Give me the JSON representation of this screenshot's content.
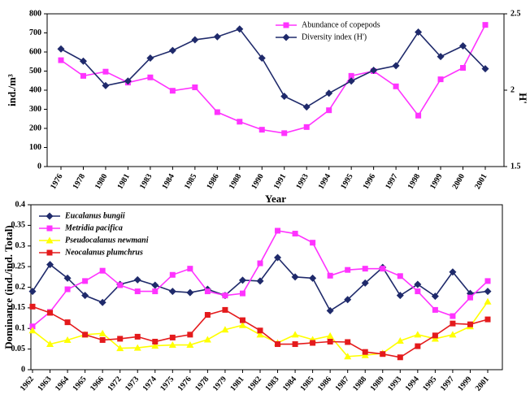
{
  "chart_data": [
    {
      "type": "line",
      "x_label": "Year",
      "y_label": "ind./m³",
      "y2_label": "H'",
      "categories": [
        "1976",
        "1978",
        "1980",
        "1981",
        "1983",
        "1984",
        "1985",
        "1986",
        "1988",
        "1990",
        "1991",
        "1993",
        "1994",
        "1995",
        "1996",
        "1997",
        "1998",
        "1999",
        "2000",
        "2001"
      ],
      "series": [
        {
          "name": "Abundance of copepods",
          "color": "#ff33ff",
          "marker": "square",
          "values": [
            557,
            475,
            497,
            440,
            467,
            397,
            415,
            285,
            235,
            193,
            175,
            207,
            295,
            475,
            500,
            420,
            267,
            457,
            517,
            742
          ]
        },
        {
          "name": "Diversity index (H')",
          "color": "#1f2a6b",
          "marker": "diamond",
          "axis": "y2",
          "values": [
            2.27,
            2.19,
            2.03,
            2.06,
            2.21,
            2.26,
            2.33,
            2.35,
            2.4,
            2.21,
            1.96,
            1.89,
            1.98,
            2.06,
            2.13,
            2.16,
            2.38,
            2.22,
            2.29,
            2.14
          ]
        }
      ],
      "ylim": [
        0,
        800
      ],
      "yticks": [
        0,
        100,
        200,
        300,
        400,
        500,
        600,
        700,
        800
      ],
      "y2lim": [
        1.5,
        2.5
      ],
      "y2ticks": [
        1.5,
        2,
        2.5
      ],
      "legend": "upper center"
    },
    {
      "type": "line",
      "y_label": "Dominance (ind./ind. Total)",
      "categories": [
        "1962",
        "1963",
        "1964",
        "1965",
        "1966",
        "1972",
        "1973",
        "1974",
        "1975",
        "1976",
        "1978",
        "1979",
        "1981",
        "1982",
        "1983",
        "1984",
        "1985",
        "1986",
        "1987",
        "1988",
        "1989",
        "1993",
        "1994",
        "1995",
        "1997",
        "1999",
        "2001"
      ],
      "series": [
        {
          "name": "Eucalanus bungii",
          "color": "#1f2a6b",
          "marker": "diamond",
          "values": [
            0.19,
            0.255,
            0.222,
            0.18,
            0.163,
            0.207,
            0.218,
            0.205,
            0.19,
            0.187,
            0.195,
            0.18,
            0.217,
            0.215,
            0.272,
            0.225,
            0.222,
            0.143,
            0.17,
            0.21,
            0.248,
            0.18,
            0.207,
            0.178,
            0.237,
            0.185,
            0.19
          ]
        },
        {
          "name": "Metridia pacifica",
          "color": "#ff33ff",
          "marker": "square",
          "values": [
            0.105,
            0.14,
            0.195,
            0.215,
            0.24,
            0.205,
            0.19,
            0.19,
            0.23,
            0.245,
            0.19,
            0.18,
            0.185,
            0.258,
            0.337,
            0.33,
            0.308,
            0.228,
            0.242,
            0.245,
            0.245,
            0.227,
            0.19,
            0.145,
            0.13,
            0.175,
            0.215
          ]
        },
        {
          "name": "Pseudocalanus newmani",
          "color": "#ffff00",
          "marker": "triangle",
          "values": [
            0.095,
            0.062,
            0.072,
            0.085,
            0.088,
            0.052,
            0.053,
            0.058,
            0.06,
            0.06,
            0.073,
            0.097,
            0.108,
            0.085,
            0.065,
            0.085,
            0.073,
            0.082,
            0.032,
            0.035,
            0.04,
            0.07,
            0.085,
            0.075,
            0.085,
            0.105,
            0.165
          ]
        },
        {
          "name": "Neocalanus plumchrus",
          "color": "#e41a1c",
          "marker": "square",
          "values": [
            0.153,
            0.138,
            0.115,
            0.085,
            0.072,
            0.075,
            0.08,
            0.068,
            0.078,
            0.085,
            0.133,
            0.145,
            0.12,
            0.095,
            0.062,
            0.062,
            0.065,
            0.068,
            0.067,
            0.043,
            0.038,
            0.03,
            0.057,
            0.083,
            0.112,
            0.11,
            0.122
          ]
        }
      ],
      "ylim": [
        0,
        0.4
      ],
      "yticks": [
        0,
        0.05,
        0.1,
        0.15,
        0.2,
        0.25,
        0.3,
        0.35,
        0.4
      ],
      "legend": "upper left"
    }
  ]
}
